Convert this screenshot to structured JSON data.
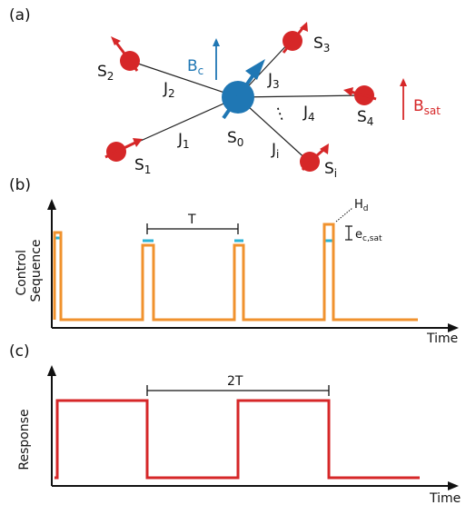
{
  "panels": {
    "a": "(a)",
    "b": "(b)",
    "c": "(c)"
  },
  "spins": {
    "central": {
      "base": "S",
      "sub": "0"
    },
    "s1": {
      "base": "S",
      "sub": "1"
    },
    "s2": {
      "base": "S",
      "sub": "2"
    },
    "s3": {
      "base": "S",
      "sub": "3"
    },
    "s4": {
      "base": "S",
      "sub": "4"
    },
    "si": {
      "base": "S",
      "sub": "i"
    }
  },
  "couplings": {
    "j1": {
      "base": "J",
      "sub": "1"
    },
    "j2": {
      "base": "J",
      "sub": "2"
    },
    "j3": {
      "base": "J",
      "sub": "3"
    },
    "j4": {
      "base": "J",
      "sub": "4"
    },
    "ji": {
      "base": "J",
      "sub": "i"
    },
    "ellipsis": "⋮"
  },
  "fields": {
    "bc": {
      "base": "B",
      "sub": "c"
    },
    "bsat": {
      "base": "B",
      "sub": "sat"
    }
  },
  "panel_b": {
    "ylabel_line1": "Control",
    "ylabel_line2": "Sequence",
    "xlabel": "Time",
    "period": "T",
    "hd": {
      "base": "H",
      "sub": "d"
    },
    "ec": {
      "base": "e",
      "sub": "c,sat"
    }
  },
  "panel_c": {
    "ylabel": "Response",
    "xlabel": "Time",
    "period": "2T"
  },
  "colors": {
    "central_spin": "#1f77b4",
    "bath_spin": "#d62728",
    "control": "#f0922e",
    "control_tip": "#2ab3d6",
    "response": "#d62728",
    "bc_arrow": "#1f77b4",
    "bsat_arrow": "#d62728"
  }
}
